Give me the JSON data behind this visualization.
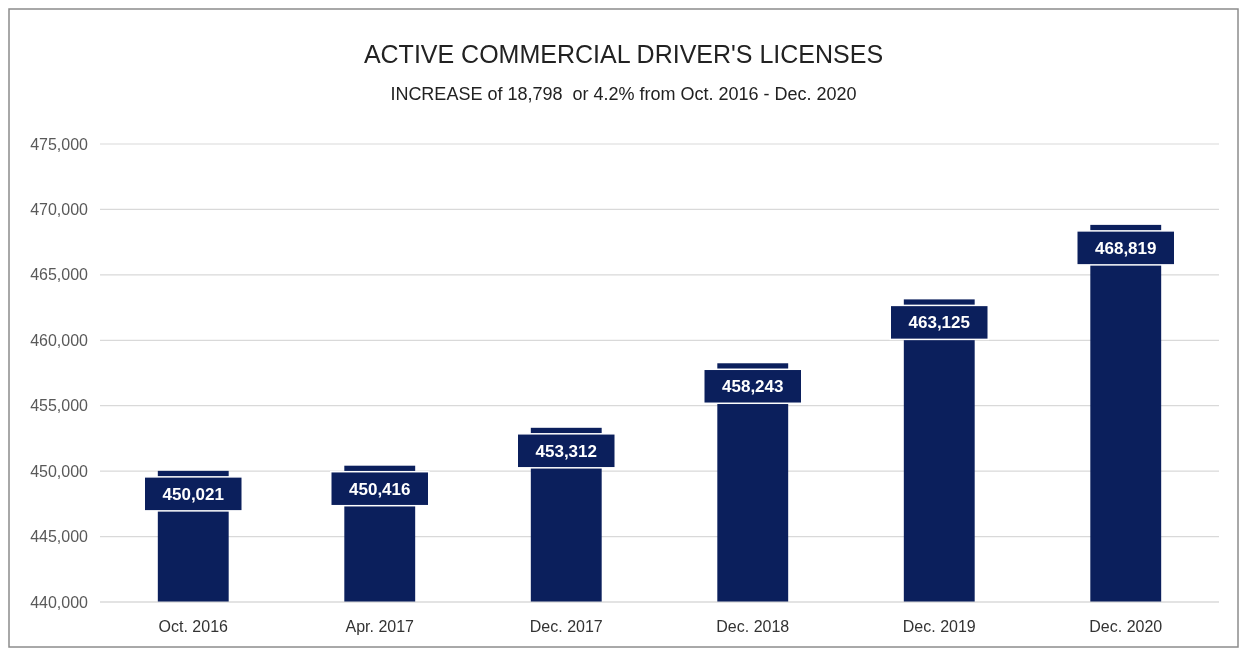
{
  "chart_data": {
    "type": "bar",
    "title": "ACTIVE COMMERCIAL DRIVER'S LICENSES",
    "subtitle": "INCREASE of 18,798  or 4.2% from Oct. 2016 - Dec. 2020",
    "categories": [
      "Oct. 2016",
      "Apr. 2017",
      "Dec. 2017",
      "Dec. 2018",
      "Dec. 2019",
      "Dec. 2020"
    ],
    "values": [
      450021,
      450416,
      453312,
      458243,
      463125,
      468819
    ],
    "color": "#0b1f5c",
    "ylim": [
      440000,
      475000
    ],
    "yticks": [
      {
        "value": 440000,
        "label": "440,000"
      },
      {
        "value": 445000,
        "label": "445,000"
      },
      {
        "value": 450000,
        "label": "450,000"
      },
      {
        "value": 455000,
        "label": "455,000"
      },
      {
        "value": 460000,
        "label": "460,000"
      },
      {
        "value": 465000,
        "label": "465,000"
      },
      {
        "value": 470000,
        "label": "470,000"
      },
      {
        "value": 475000,
        "label": "475,000"
      }
    ],
    "value_labels": [
      "450,021",
      "450,416",
      "453,312",
      "458,243",
      "463,125",
      "468,819"
    ],
    "grid": "y"
  }
}
